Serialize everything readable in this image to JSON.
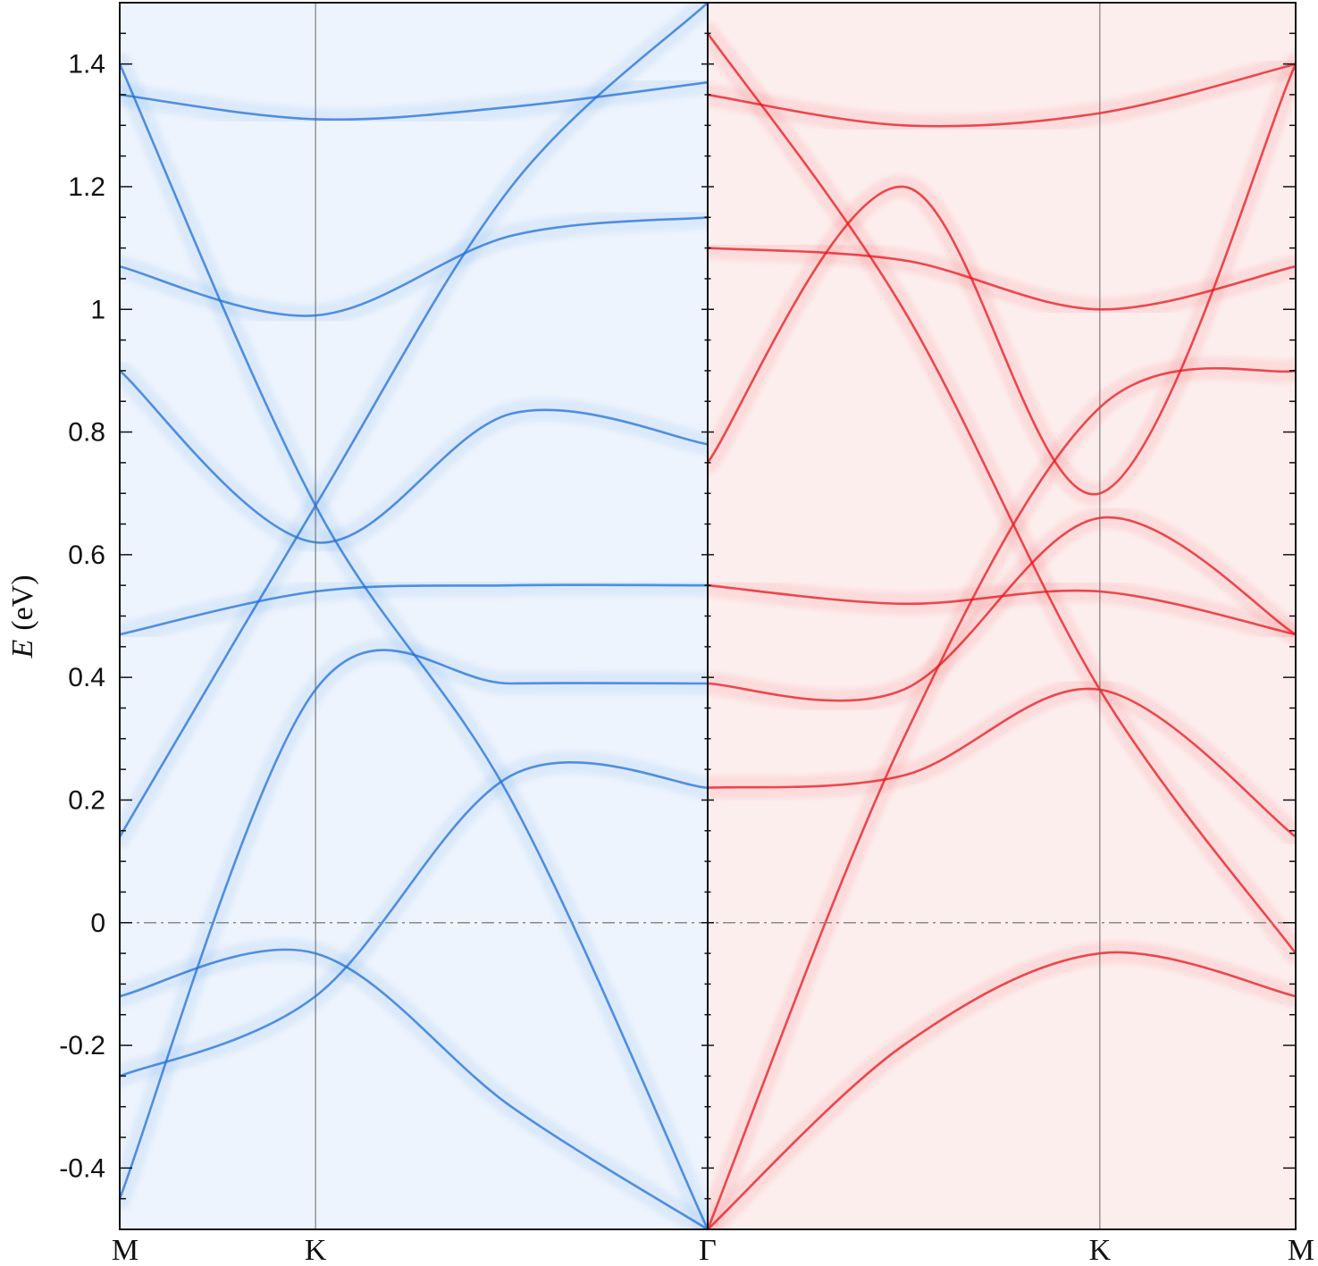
{
  "chart_data": {
    "type": "heatmap",
    "title": "",
    "ylabel_symbol": "E",
    "ylabel_unit": "(eV)",
    "ylim": [
      -0.5,
      1.5
    ],
    "yticks": [
      {
        "value": 1.4,
        "label": "1.4"
      },
      {
        "value": 1.2,
        "label": "1.2"
      },
      {
        "value": 1.0,
        "label": "1"
      },
      {
        "value": 0.8,
        "label": "0.8"
      },
      {
        "value": 0.6,
        "label": "0.6"
      },
      {
        "value": 0.4,
        "label": "0.4"
      },
      {
        "value": 0.2,
        "label": "0.2"
      },
      {
        "value": 0.0,
        "label": "0"
      },
      {
        "value": -0.2,
        "label": "-0.2"
      },
      {
        "value": -0.4,
        "label": "-0.4"
      }
    ],
    "k_path": [
      {
        "label": "M",
        "pos": 0.0
      },
      {
        "label": "K",
        "pos": 0.333
      },
      {
        "label": "Γ",
        "pos": 1.0
      },
      {
        "label": "K",
        "pos": 1.667
      },
      {
        "label": "M",
        "pos": 2.0
      }
    ],
    "fermi_level": 0.0,
    "panels": [
      {
        "side": "left",
        "colormap": "white-to-blue",
        "color": "#1f6fd8",
        "bg": "#eef4fd"
      },
      {
        "side": "right",
        "colormap": "white-to-red",
        "color": "#e8141c",
        "bg": "#fdeeee"
      }
    ],
    "bands_left": [
      {
        "x": [
          0,
          0.333,
          0.666,
          1.0
        ],
        "y": [
          -0.45,
          0.38,
          0.39,
          0.39
        ]
      },
      {
        "x": [
          0,
          0.333,
          0.666,
          1.0
        ],
        "y": [
          1.4,
          0.68,
          0.2,
          -0.5
        ]
      },
      {
        "x": [
          0,
          0.333,
          0.666,
          1.0
        ],
        "y": [
          0.14,
          0.68,
          1.2,
          1.5
        ]
      },
      {
        "x": [
          0,
          0.333,
          0.666,
          1.0
        ],
        "y": [
          0.47,
          0.54,
          0.55,
          0.55
        ]
      },
      {
        "x": [
          0,
          0.333,
          0.666,
          1.0
        ],
        "y": [
          1.07,
          0.99,
          1.12,
          1.15
        ]
      },
      {
        "x": [
          0,
          0.333,
          0.666,
          1.0
        ],
        "y": [
          1.35,
          1.31,
          1.33,
          1.37
        ]
      },
      {
        "x": [
          0,
          0.333,
          0.666,
          1.0
        ],
        "y": [
          -0.12,
          -0.05,
          -0.3,
          -0.5
        ]
      },
      {
        "x": [
          0,
          0.333,
          0.666,
          1.0
        ],
        "y": [
          -0.25,
          -0.12,
          0.24,
          0.22
        ]
      },
      {
        "x": [
          0,
          0.333,
          0.666,
          1.0
        ],
        "y": [
          0.9,
          0.62,
          0.83,
          0.78
        ]
      }
    ],
    "bands_right": [
      {
        "x": [
          1.0,
          1.333,
          1.667,
          2.0
        ],
        "y": [
          0.39,
          0.38,
          0.66,
          0.47
        ]
      },
      {
        "x": [
          1.0,
          1.333,
          1.667,
          2.0
        ],
        "y": [
          1.45,
          1.0,
          0.38,
          -0.05
        ]
      },
      {
        "x": [
          1.0,
          1.333,
          1.667,
          2.0
        ],
        "y": [
          0.75,
          1.2,
          0.7,
          1.4
        ]
      },
      {
        "x": [
          1.0,
          1.333,
          1.667,
          2.0
        ],
        "y": [
          0.55,
          0.52,
          0.54,
          0.47
        ]
      },
      {
        "x": [
          1.0,
          1.333,
          1.667,
          2.0
        ],
        "y": [
          1.1,
          1.08,
          1.0,
          1.07
        ]
      },
      {
        "x": [
          1.0,
          1.333,
          1.667,
          2.0
        ],
        "y": [
          -0.5,
          -0.2,
          -0.05,
          -0.12
        ]
      },
      {
        "x": [
          1.0,
          1.333,
          1.667,
          2.0
        ],
        "y": [
          0.22,
          0.24,
          0.38,
          0.14
        ]
      },
      {
        "x": [
          1.0,
          1.333,
          1.667,
          2.0
        ],
        "y": [
          -0.5,
          0.3,
          0.84,
          0.9
        ]
      },
      {
        "x": [
          1.0,
          1.333,
          1.667,
          2.0
        ],
        "y": [
          1.35,
          1.3,
          1.32,
          1.4
        ]
      }
    ]
  }
}
